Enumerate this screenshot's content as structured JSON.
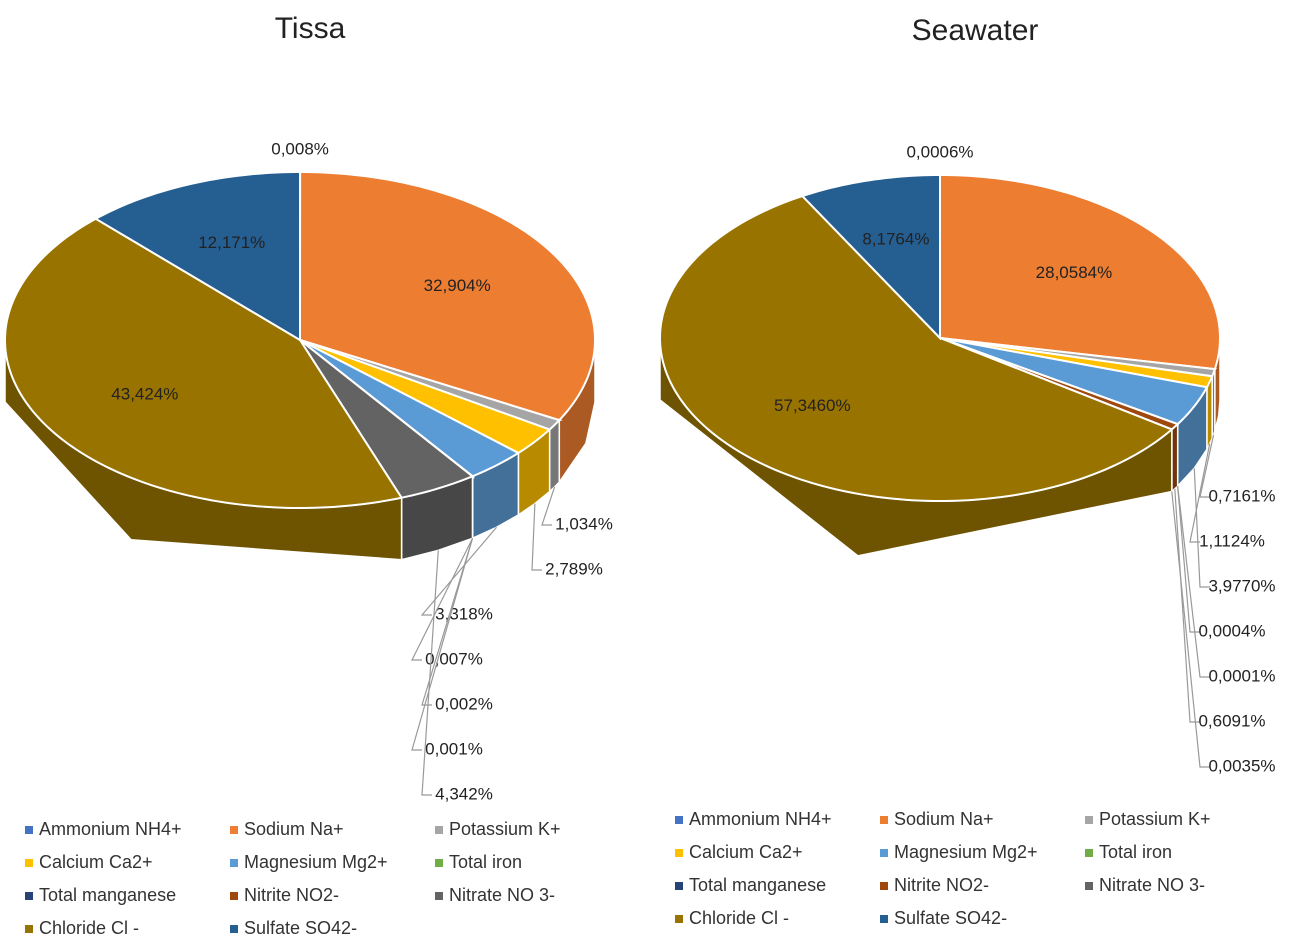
{
  "chart_data": [
    {
      "type": "pie",
      "title": "Tissa",
      "categories": [
        "Ammonium NH4+",
        "Sodium  Na+",
        "Potassium  K+",
        "Calcium  Ca2+",
        "Magnesium  Mg2+",
        "Total iron",
        "Total manganese",
        "Nitrite  NO2-",
        "Nitrate  NO 3-",
        "Chloride  Cl -",
        "Sulfate  SO42-"
      ],
      "values": [
        0.008,
        32.904,
        1.034,
        2.789,
        3.318,
        0.007,
        0.002,
        0.001,
        4.342,
        43.424,
        12.171
      ],
      "value_labels": [
        "0,008%",
        "32,904%",
        "1,034%",
        "2,789%",
        "3,318%",
        "0,007%",
        "0,002%",
        "0,001%",
        "4,342%",
        "43,424%",
        "12,171%"
      ],
      "colors": [
        "#4472c4",
        "#ed7d31",
        "#a5a5a5",
        "#ffc000",
        "#5b9bd5",
        "#70ad47",
        "#264478",
        "#9e480e",
        "#636363",
        "#997300",
        "#255e91"
      ]
    },
    {
      "type": "pie",
      "title": "Seawater",
      "categories": [
        "Ammonium NH4+",
        "Sodium  Na+",
        "Potassium  K+",
        "Calcium  Ca2+",
        "Magnesium  Mg2+",
        "Total iron",
        "Total manganese",
        "Nitrite  NO2-",
        "Nitrate  NO 3-",
        "Chloride  Cl -",
        "Sulfate  SO42-"
      ],
      "values": [
        0.0006,
        28.0584,
        0.7161,
        1.1124,
        3.977,
        0.0004,
        0.0001,
        0.6091,
        0.0035,
        57.346,
        8.1764
      ],
      "value_labels": [
        "0,0006%",
        "28,0584%",
        "0,7161%",
        "1,1124%",
        "3,9770%",
        "0,0004%",
        "0,0001%",
        "0,6091%",
        "0,0035%",
        "57,3460%",
        "8,1764%"
      ],
      "colors": [
        "#4472c4",
        "#ed7d31",
        "#a5a5a5",
        "#ffc000",
        "#5b9bd5",
        "#70ad47",
        "#264478",
        "#9e480e",
        "#636363",
        "#997300",
        "#255e91"
      ]
    }
  ]
}
